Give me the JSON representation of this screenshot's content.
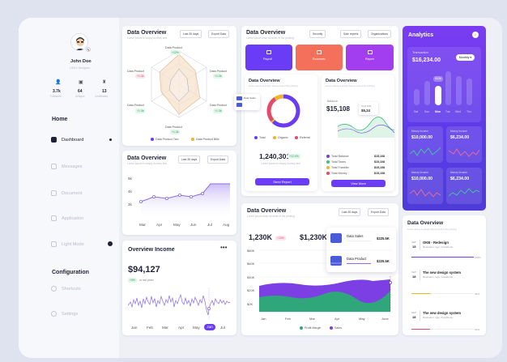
{
  "profile": {
    "name": "John Doe",
    "role": "UI/UX Designer",
    "stats": [
      {
        "value": "3.7k",
        "label": "Followers"
      },
      {
        "value": "64",
        "label": "Designs"
      },
      {
        "value": "13",
        "label": "Certificates"
      }
    ]
  },
  "nav": {
    "home_title": "Home",
    "config_title": "Configuration",
    "items": [
      "Dashboard",
      "Messages",
      "Document",
      "Application",
      "Light Mode"
    ],
    "config_items": [
      "Shortcuts",
      "Settings"
    ]
  },
  "radar_card": {
    "title": "Data Overview",
    "subtitle": "Lorem ipsum is simply dummy text",
    "filter": "Last 30 days",
    "export": "Export Data",
    "labels": [
      "Data Product",
      "Data Product",
      "Data Product",
      "Data Product",
      "Data Product",
      "Data Product"
    ],
    "values": [
      "+12%",
      "+1.3k",
      "+1.3k",
      "+1.3k",
      "+1.3k",
      "+1.3k"
    ],
    "legend": [
      "Data Product Two",
      "Data Product Bills"
    ]
  },
  "line_card": {
    "title": "Data Overview",
    "subtitle": "Lorem ipsum is simply dummy text",
    "filter": "Last 30 days",
    "export": "Export Data"
  },
  "income_card": {
    "title": "Overview Income",
    "amount": "$94,127",
    "badge": "+5%",
    "note": "vs last years",
    "months": [
      "Jan",
      "Feb",
      "Mar",
      "Apr",
      "May",
      "Jun",
      "Jul"
    ],
    "active_month": "Jun"
  },
  "top_card": {
    "title": "Data Overview",
    "subtitle": "Lorem ipsum dolor sit amet of the printing",
    "filters": [
      "Security",
      "Sale reports",
      "Organizations"
    ],
    "tiles": [
      {
        "label": "Payroll",
        "color": "#6b3cf5"
      },
      {
        "label": "Economic",
        "color": "#f5705a"
      },
      {
        "label": "Report",
        "color": "#a23df0"
      }
    ]
  },
  "donut_card": {
    "title": "Data Overview",
    "subtitle": "Lorem ipsum is simply dummy text of the printing",
    "callout": "Data Sales",
    "legend": [
      "Total",
      "Organic",
      "Referral"
    ],
    "amount": "1,240,301",
    "badge": "+12.4%",
    "note": "Lorem ipsum is simply dummy text",
    "button": "Send Report"
  },
  "balance_card": {
    "title": "Data Overview",
    "subtitle": "Lorem ipsum is simply dummy text of the printing",
    "balance_label": "Balance",
    "amount": "$15,108",
    "tooltip_label": "Total Bills",
    "tooltip_value": "$5,24",
    "rows": [
      {
        "label": "Total Balance",
        "value": "$15,108"
      },
      {
        "label": "Total Taxes",
        "value": "$15,108"
      },
      {
        "label": "Total Transfer",
        "value": "$15,108"
      },
      {
        "label": "Total Money",
        "value": "$15,108"
      }
    ],
    "button": "View More"
  },
  "area_card": {
    "title": "Data Overview",
    "subtitle": "Lorem ipsum dolor sit amet of the printing",
    "filter": "Last 30 days",
    "export": "Export Data",
    "stat1": "1,230K",
    "badge1": "+10%",
    "stat2": "$1,230K",
    "badge2": "+5%",
    "popups": [
      {
        "label": "Data Sales",
        "value": "$225.5K"
      },
      {
        "label": "Data Product",
        "value": "$225.5K"
      }
    ],
    "yticks": [
      "$80K",
      "$60K",
      "$40K",
      "$20K",
      "$0K"
    ],
    "months": [
      "Jan",
      "Feb",
      "Mar",
      "Apr",
      "May",
      "June"
    ],
    "legend": [
      "Profit Margin",
      "Sales"
    ]
  },
  "analytics": {
    "title": "Analytics",
    "transaction_label": "Transaction",
    "amount": "$16,234.00",
    "period": "Monthly",
    "bars_days": [
      "Sat",
      "Sun",
      "Mon",
      "Tue",
      "Wed",
      "Thu"
    ],
    "active_day": "Mon",
    "active_value": "$12k",
    "tiles": [
      {
        "label": "Money Income",
        "value": "$10,000.00"
      },
      {
        "label": "Money Income",
        "value": "$6,234.00"
      },
      {
        "label": "Money Income",
        "value": "$10,000.00"
      },
      {
        "label": "Money Income",
        "value": "$6,234.00"
      }
    ]
  },
  "tasks_card": {
    "title": "Data Overview",
    "subtitle": "Lorem ipsum is simply dummy text of the printing",
    "tasks": [
      {
        "month": "SEP",
        "day": "15",
        "title": "OKB - Redesign",
        "desc": "Illustration, logo, brandbook",
        "progress": "100%",
        "color": "#6b3cf5",
        "fill": 1.0
      },
      {
        "month": "SEP",
        "day": "18",
        "title": "The new design system",
        "desc": "Illustration, logo, brandbook",
        "progress": "30%",
        "color": "#f0b429",
        "fill": 0.3
      },
      {
        "month": "SEP",
        "day": "18",
        "title": "The new design system",
        "desc": "Illustration, logo, brandbook",
        "progress": "30%",
        "color": "#e24b6b",
        "fill": 0.3
      }
    ]
  }
}
